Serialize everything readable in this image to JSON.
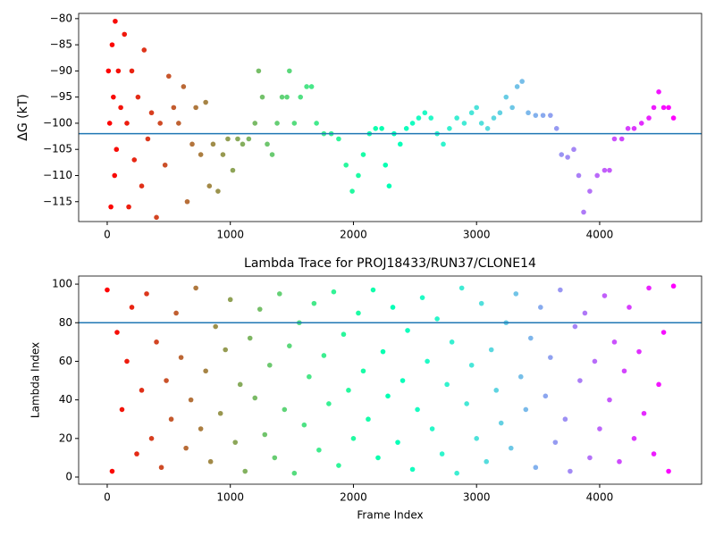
{
  "chart_data": [
    {
      "type": "scatter",
      "ylabel": "ΔG (kT)",
      "colormap": "rainbow",
      "reverse_colormap": true,
      "clim": [
        0,
        4600
      ],
      "hline": -102,
      "hline_color": "#1f77b4",
      "xlim": [
        -232,
        4828
      ],
      "ylim": [
        -118.8,
        -79
      ],
      "xticks": [
        0,
        1000,
        2000,
        3000,
        4000
      ],
      "yticks": [
        {
          "value": -115,
          "label": "−115"
        },
        {
          "value": -110,
          "label": "−110"
        },
        {
          "value": -105,
          "label": "−105"
        },
        {
          "value": -100,
          "label": "−100"
        },
        {
          "value": -95,
          "label": "−95"
        },
        {
          "value": -90,
          "label": "−90"
        },
        {
          "value": -85,
          "label": "−85"
        },
        {
          "value": -80,
          "label": "−80"
        }
      ],
      "x": [
        10,
        20,
        30,
        40,
        50,
        60,
        65,
        75,
        90,
        110,
        140,
        160,
        175,
        200,
        220,
        250,
        280,
        300,
        330,
        360,
        400,
        430,
        470,
        500,
        540,
        580,
        620,
        650,
        690,
        720,
        760,
        800,
        830,
        860,
        900,
        940,
        980,
        1020,
        1060,
        1100,
        1150,
        1200,
        1230,
        1260,
        1300,
        1340,
        1380,
        1420,
        1460,
        1480,
        1520,
        1570,
        1620,
        1660,
        1700,
        1760,
        1820,
        1880,
        1940,
        1990,
        2040,
        2080,
        2130,
        2180,
        2230,
        2260,
        2290,
        2330,
        2380,
        2430,
        2480,
        2530,
        2580,
        2630,
        2680,
        2730,
        2780,
        2840,
        2900,
        2960,
        3000,
        3040,
        3090,
        3140,
        3190,
        3240,
        3290,
        3330,
        3370,
        3420,
        3480,
        3540,
        3600,
        3650,
        3690,
        3740,
        3790,
        3830,
        3870,
        3920,
        3980,
        4040,
        4080,
        4120,
        4180,
        4230,
        4280,
        4340,
        4400,
        4440,
        4480,
        4520,
        4560,
        4600
      ],
      "y": [
        -90,
        -100,
        -116,
        -85,
        -95,
        -110,
        -80.5,
        -105,
        -90,
        -97,
        -83,
        -100,
        -116,
        -90,
        -107,
        -95,
        -112,
        -86,
        -103,
        -98,
        -118,
        -100,
        -108,
        -91,
        -97,
        -100,
        -93,
        -115,
        -104,
        -97,
        -106,
        -96,
        -112,
        -104,
        -113,
        -106,
        -103,
        -109,
        -103,
        -104,
        -103,
        -100,
        -90,
        -95,
        -104,
        -106,
        -100,
        -95,
        -95,
        -90,
        -100,
        -95,
        -93,
        -93,
        -100,
        -102,
        -102,
        -103,
        -108,
        -113,
        -110,
        -106,
        -102,
        -101,
        -101,
        -108,
        -112,
        -102,
        -104,
        -101,
        -100,
        -99,
        -98,
        -99,
        -102,
        -104,
        -101,
        -99,
        -100,
        -98,
        -97,
        -100,
        -101,
        -99,
        -98,
        -95,
        -97,
        -93,
        -92,
        -98,
        -98.5,
        -98.5,
        -98.5,
        -101,
        -106,
        -106.5,
        -105,
        -110,
        -117,
        -113,
        -110,
        -109,
        -109,
        -103,
        -103,
        -101,
        -101,
        -100,
        -99,
        -97,
        -94,
        -97,
        -97,
        -99
      ]
    },
    {
      "type": "scatter",
      "title": "Lambda Trace for PROJ18433/RUN37/CLONE14",
      "xlabel": "Frame Index",
      "ylabel": "Lambda Index",
      "colormap": "rainbow",
      "reverse_colormap": true,
      "clim": [
        0,
        4600
      ],
      "hline": 80,
      "hline_color": "#1f77b4",
      "xlim": [
        -232,
        4828
      ],
      "ylim": [
        -3.7,
        104.2
      ],
      "xticks": [
        0,
        1000,
        2000,
        3000,
        4000
      ],
      "yticks": [
        0,
        20,
        40,
        60,
        80,
        100
      ],
      "x": [
        0,
        40,
        80,
        120,
        160,
        200,
        240,
        280,
        320,
        360,
        400,
        440,
        480,
        520,
        560,
        600,
        640,
        680,
        720,
        760,
        800,
        840,
        880,
        920,
        960,
        1000,
        1040,
        1080,
        1120,
        1160,
        1200,
        1240,
        1280,
        1320,
        1360,
        1400,
        1440,
        1480,
        1520,
        1560,
        1600,
        1640,
        1680,
        1720,
        1760,
        1800,
        1840,
        1880,
        1920,
        1960,
        2000,
        2040,
        2080,
        2120,
        2160,
        2200,
        2240,
        2280,
        2320,
        2360,
        2400,
        2440,
        2480,
        2520,
        2560,
        2600,
        2640,
        2680,
        2720,
        2760,
        2800,
        2840,
        2880,
        2920,
        2960,
        3000,
        3040,
        3080,
        3120,
        3160,
        3200,
        3240,
        3280,
        3320,
        3360,
        3400,
        3440,
        3480,
        3520,
        3560,
        3600,
        3640,
        3680,
        3720,
        3760,
        3800,
        3840,
        3880,
        3920,
        3960,
        4000,
        4040,
        4080,
        4120,
        4160,
        4200,
        4240,
        4280,
        4320,
        4360,
        4400,
        4440,
        4480,
        4520,
        4560,
        4600
      ],
      "y": [
        97,
        3,
        75,
        35,
        60,
        88,
        12,
        45,
        95,
        20,
        70,
        5,
        50,
        30,
        85,
        62,
        15,
        40,
        98,
        25,
        55,
        8,
        78,
        33,
        66,
        92,
        18,
        48,
        3,
        72,
        41,
        87,
        22,
        58,
        10,
        95,
        35,
        68,
        2,
        80,
        27,
        52,
        90,
        14,
        63,
        38,
        96,
        6,
        74,
        45,
        20,
        85,
        55,
        30,
        97,
        10,
        65,
        42,
        88,
        18,
        50,
        76,
        4,
        35,
        93,
        60,
        25,
        82,
        12,
        48,
        70,
        2,
        98,
        38,
        58,
        20,
        90,
        8,
        66,
        45,
        28,
        80,
        15,
        95,
        52,
        35,
        72,
        5,
        88,
        42,
        62,
        18,
        97,
        30,
        3,
        78,
        50,
        85,
        10,
        60,
        25,
        94,
        40,
        70,
        8,
        55,
        88,
        20,
        65,
        33,
        98,
        12,
        48,
        75,
        3,
        99
      ]
    }
  ]
}
